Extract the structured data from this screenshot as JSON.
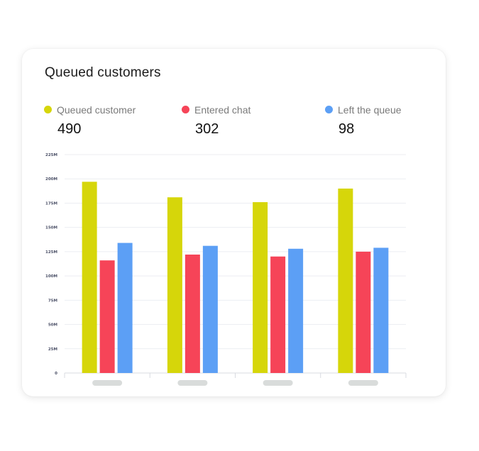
{
  "card": {
    "title": "Queued customers"
  },
  "legend": [
    {
      "label": "Queued customer",
      "value": "490",
      "color": "#d6d60a"
    },
    {
      "label": "Entered chat",
      "value": "302",
      "color": "#f64458"
    },
    {
      "label": "Left the queue",
      "value": "98",
      "color": "#5c9ff5"
    }
  ],
  "chart_data": {
    "type": "bar",
    "title": "",
    "xlabel": "",
    "ylabel": "",
    "categories": [
      "",
      "",
      "",
      ""
    ],
    "ylim": [
      0,
      225
    ],
    "yticks": [
      {
        "value": 0,
        "label": "0"
      },
      {
        "value": 25,
        "label": "25M"
      },
      {
        "value": 50,
        "label": "50M"
      },
      {
        "value": 75,
        "label": "75M"
      },
      {
        "value": 100,
        "label": "100M"
      },
      {
        "value": 125,
        "label": "125M"
      },
      {
        "value": 150,
        "label": "150M"
      },
      {
        "value": 175,
        "label": "175M"
      },
      {
        "value": 200,
        "label": "200M"
      },
      {
        "value": 225,
        "label": "225M"
      }
    ],
    "series": [
      {
        "name": "Queued customer",
        "color": "#d6d60a",
        "values": [
          197,
          181,
          176,
          190
        ]
      },
      {
        "name": "Entered chat",
        "color": "#f64458",
        "values": [
          116,
          122,
          120,
          125
        ]
      },
      {
        "name": "Left the queue",
        "color": "#5c9ff5",
        "values": [
          134,
          131,
          128,
          129
        ]
      }
    ],
    "grid": true,
    "legend_position": "top"
  }
}
